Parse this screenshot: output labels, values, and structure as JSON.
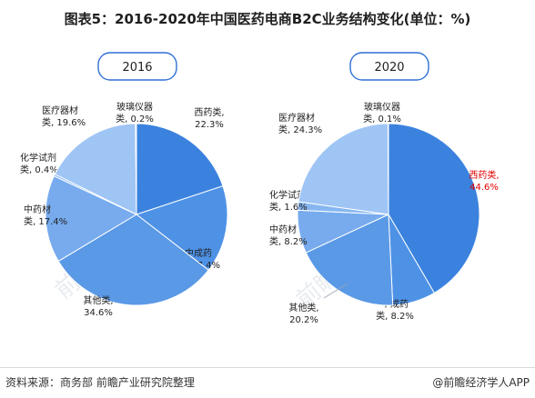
{
  "title": "图表5：2016-2020年中国医药电商B2C业务结构变化(单位：%)",
  "source": "资料来源：商务部 前瞻产业研究院整理",
  "brand": "@前瞻经济学人APP",
  "watermark": "前瞻产业研究院",
  "colors": {
    "xiyao": "#3b82de",
    "zhongchengyao": "#4e92e6",
    "qita": "#5a99e6",
    "zhongyaocai": "#77abee",
    "huaxue": "#86b6f0",
    "yiliao": "#9fc5f5",
    "boli": "#b8d4f8",
    "highlight_text": "#e30000"
  },
  "chart_data": [
    {
      "type": "pie",
      "year_label": "2016",
      "slices": [
        {
          "key": "xiyao",
          "line1": "西药类,",
          "line2": "22.3%",
          "value": 22.3
        },
        {
          "key": "zhongchengyao",
          "line1": "中成药",
          "line2": "类, 17.4%",
          "value": 17.4
        },
        {
          "key": "qita",
          "line1": "其他类,",
          "line2": "34.6%",
          "value": 34.6
        },
        {
          "key": "zhongyaocai",
          "line1": "中药材",
          "line2": "类, 17.4%",
          "value": 17.4
        },
        {
          "key": "huaxue",
          "line1": "化学试剂",
          "line2": "类, 0.4%",
          "value": 0.4
        },
        {
          "key": "yiliao",
          "line1": "医疗器材",
          "line2": "类, 19.6%",
          "value": 19.6
        },
        {
          "key": "boli",
          "line1": "玻璃仪器",
          "line2": "类, 0.2%",
          "value": 0.2
        }
      ]
    },
    {
      "type": "pie",
      "year_label": "2020",
      "slices": [
        {
          "key": "xiyao",
          "line1": "西药类,",
          "line2": "44.6%",
          "value": 44.6,
          "highlight": true
        },
        {
          "key": "zhongchengyao",
          "line1": "中成药",
          "line2": "类, 8.2%",
          "value": 8.2
        },
        {
          "key": "qita",
          "line1": "其他类,",
          "line2": "20.2%",
          "value": 20.2
        },
        {
          "key": "zhongyaocai",
          "line1": "中药材",
          "line2": "类, 8.2%",
          "value": 8.2
        },
        {
          "key": "huaxue",
          "line1": "化学试剂",
          "line2": "类, 1.6%",
          "value": 1.6
        },
        {
          "key": "yiliao",
          "line1": "医疗器材",
          "line2": "类, 24.3%",
          "value": 24.3
        },
        {
          "key": "boli",
          "line1": "玻璃仪器",
          "line2": "类, 0.1%",
          "value": 0.1
        }
      ]
    }
  ]
}
